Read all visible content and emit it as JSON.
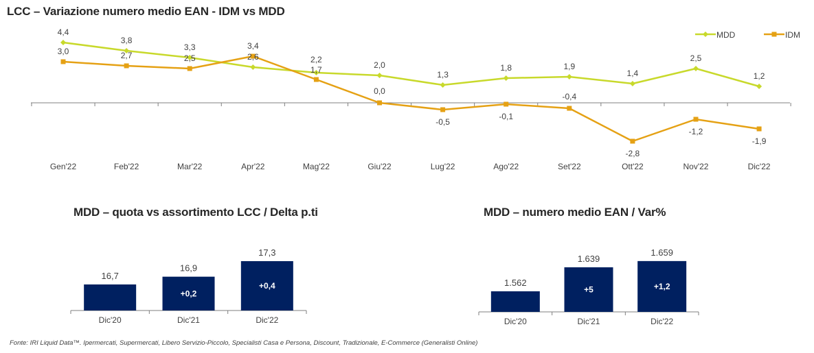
{
  "title": "LCC – Variazione numero medio EAN - IDM vs MDD",
  "source": "Fonte: IRI Liquid Data™. Ipermercati, Supermercati, Libero Servizio-Piccolo, Specialisti Casa e Persona, Discount, Tradizionale, E-Commerce (Generalisti Online)",
  "colors": {
    "mdd": "#c8d92b",
    "idm": "#e5a114",
    "bar": "#002060",
    "axis": "#7f7f7f"
  },
  "chart_data": [
    {
      "type": "line",
      "title": "LCC – Variazione numero medio EAN - IDM vs MDD",
      "categories": [
        "Gen'22",
        "Feb'22",
        "Mar'22",
        "Apr'22",
        "Mag'22",
        "Giu'22",
        "Lug'22",
        "Ago'22",
        "Set'22",
        "Ott'22",
        "Nov'22",
        "Dic'22"
      ],
      "series": [
        {
          "name": "MDD",
          "values": [
            4.4,
            3.8,
            3.3,
            2.6,
            2.2,
            2.0,
            1.3,
            1.8,
            1.9,
            1.4,
            2.5,
            1.2
          ],
          "labels": [
            "4,4",
            "3,8",
            "3,3",
            "2,6",
            "2,2",
            "2,0",
            "1,3",
            "1,8",
            "1,9",
            "1,4",
            "2,5",
            "1,2"
          ]
        },
        {
          "name": "IDM",
          "values": [
            3.0,
            2.7,
            2.5,
            3.4,
            1.7,
            0.0,
            -0.5,
            -0.1,
            -0.4,
            -2.8,
            -1.2,
            -1.9
          ],
          "labels": [
            "3,0",
            "2,7",
            "2,5",
            "3,4",
            "1,7",
            "0,0",
            "-0,5",
            "-0,1",
            "-0,4",
            "-2,8",
            "-1,2",
            "-1,9"
          ]
        }
      ],
      "legend": "top-right",
      "grid": false
    },
    {
      "type": "bar",
      "title": "MDD – quota vs assortimento LCC / Delta p.ti",
      "categories": [
        "Dic'20",
        "Dic'21",
        "Dic'22"
      ],
      "values": [
        16.7,
        16.9,
        17.3
      ],
      "labels": [
        "16,7",
        "16,9",
        "17,3"
      ],
      "inner_labels": [
        "",
        "+0,2",
        "+0,4"
      ]
    },
    {
      "type": "bar",
      "title": "MDD – numero medio EAN / Var%",
      "categories": [
        "Dic'20",
        "Dic'21",
        "Dic'22"
      ],
      "values": [
        1562,
        1639,
        1659
      ],
      "labels": [
        "1.562",
        "1.639",
        "1.659"
      ],
      "inner_labels": [
        "",
        "+5",
        "+1,2"
      ]
    }
  ]
}
